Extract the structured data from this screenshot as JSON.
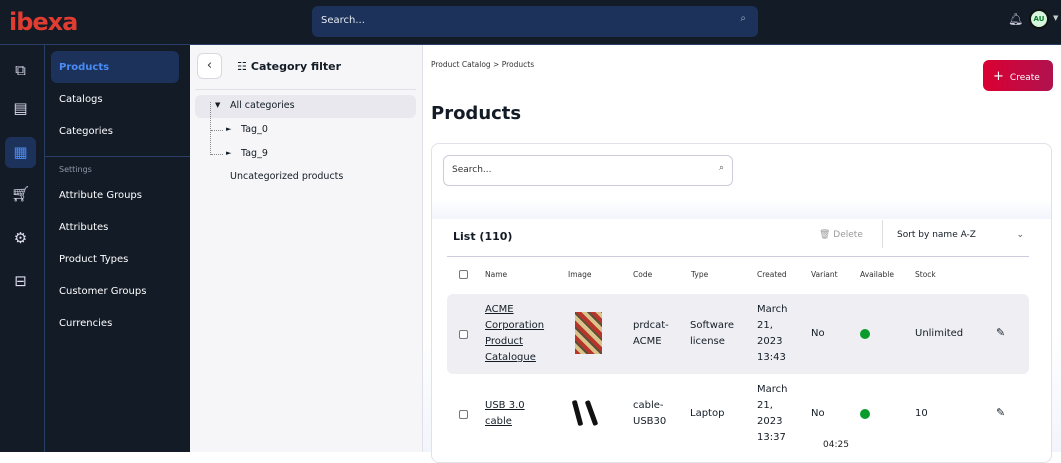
{
  "header": {
    "logo": "ibexa",
    "search_placeholder": "Search...",
    "avatar_initials": "AU"
  },
  "rail": {
    "icons": [
      "content-tree-icon",
      "content-icon",
      "product-catalog-icon",
      "commerce-icon",
      "customers-icon",
      "admin-icon"
    ]
  },
  "nav": {
    "items": [
      {
        "label": "Products"
      },
      {
        "label": "Catalogs"
      },
      {
        "label": "Categories"
      }
    ],
    "settings_label": "Settings",
    "settings_items": [
      {
        "label": "Attribute Groups"
      },
      {
        "label": "Attributes"
      },
      {
        "label": "Product Types"
      },
      {
        "label": "Customer Groups"
      },
      {
        "label": "Currencies"
      }
    ]
  },
  "category_filter": {
    "title": "Category filter",
    "all": "All categories",
    "tags": [
      "Tag_0",
      "Tag_9"
    ],
    "uncategorized": "Uncategorized products"
  },
  "main": {
    "breadcrumb": "Product Catalog  >  Products",
    "create_label": "Create",
    "title": "Products",
    "search_placeholder": "Search...",
    "list_title": "List (110)",
    "delete_label": "Delete",
    "sort_label": "Sort by name A-Z",
    "columns": [
      "Name",
      "Image",
      "Code",
      "Type",
      "Created",
      "Variant",
      "Available",
      "Stock"
    ],
    "rows": [
      {
        "name": "ACME Corporation Product Catalogue",
        "code": "prdcat-ACME",
        "type": "Software license",
        "created": "March 21, 2023 13:43",
        "variant": "No",
        "available": true,
        "stock": "Unlimited"
      },
      {
        "name": "USB 3.0 cable",
        "code": "cable-USB30",
        "type": "Laptop",
        "created": "March 21, 2023 13:37",
        "variant": "No",
        "available": true,
        "stock": "10"
      }
    ]
  },
  "stray_text": "04:25",
  "colors": {
    "accent": "#4a8cf7",
    "create": "#db0032",
    "available": "#0a9b2d",
    "topbar": "#131b26"
  }
}
